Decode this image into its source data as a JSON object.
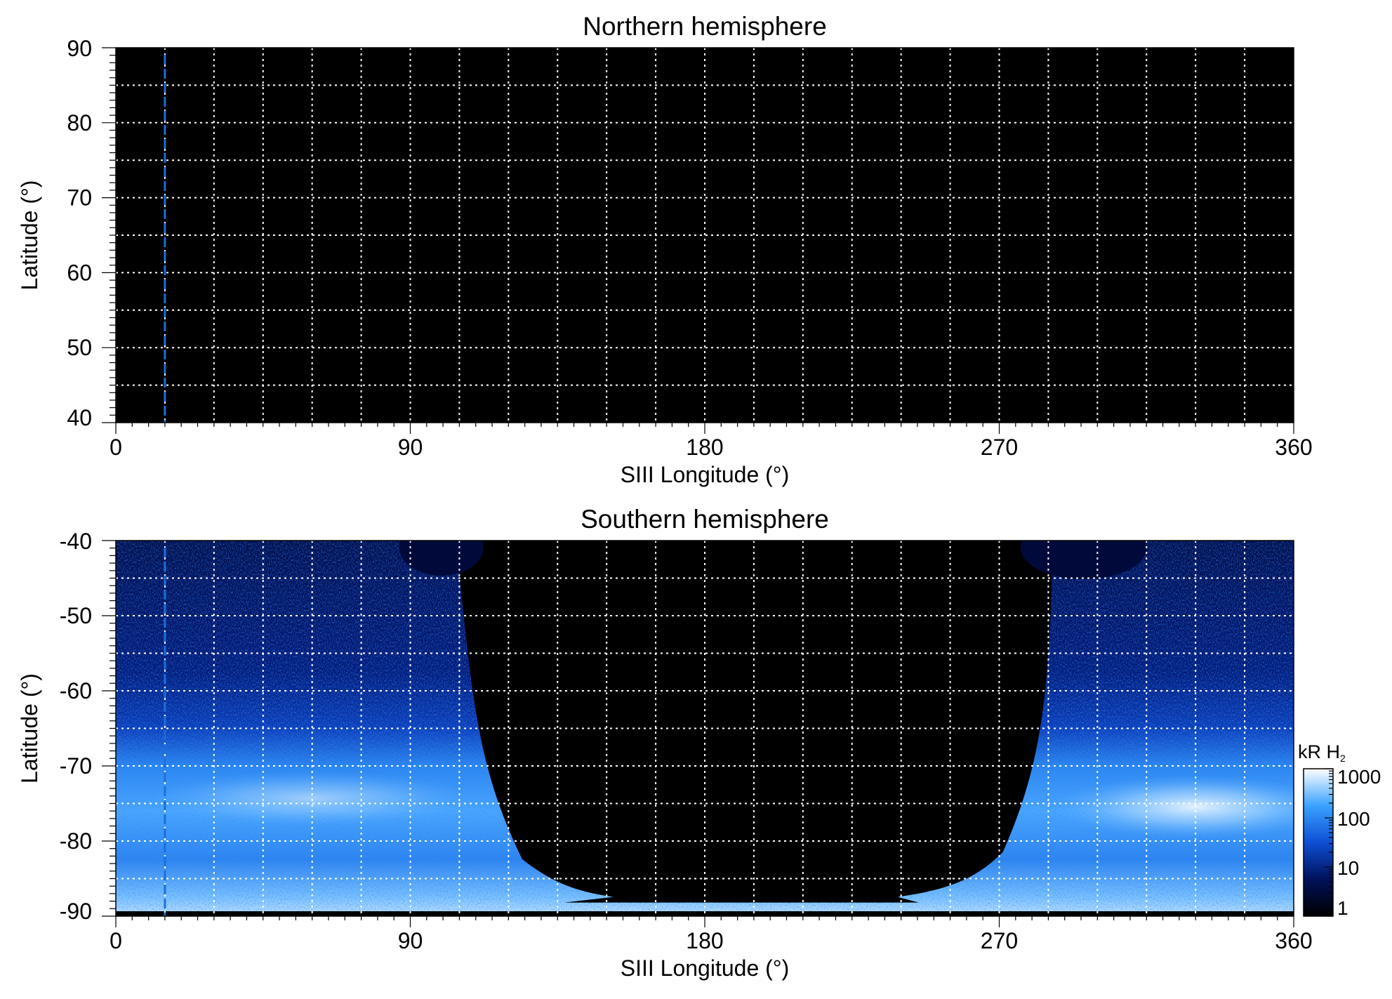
{
  "chart_data": [
    {
      "type": "heatmap",
      "title": "Northern hemisphere",
      "xlabel": "SIII Longitude (°)",
      "ylabel": "Latitude (°)",
      "xlim": [
        0,
        360
      ],
      "ylim": [
        40,
        90
      ],
      "xticks": [
        0,
        90,
        180,
        270,
        360
      ],
      "xtick_labels": [
        "0",
        "90",
        "180",
        "270",
        "360"
      ],
      "yticks": [
        40,
        50,
        60,
        70,
        80,
        90
      ],
      "ytick_labels": [
        "40",
        "50",
        "60",
        "70",
        "80",
        "90"
      ],
      "grid": true,
      "grid_x_step": 15,
      "grid_y_step": 5,
      "background_color": "#000000",
      "marker_line": {
        "longitude": 15,
        "color": "#1e6fd9"
      },
      "observed_region": "none"
    },
    {
      "type": "heatmap",
      "title": "Southern hemisphere",
      "xlabel": "SIII Longitude (°)",
      "ylabel": "Latitude (°)",
      "xlim": [
        0,
        360
      ],
      "ylim": [
        -90,
        -40
      ],
      "xticks": [
        0,
        90,
        180,
        270,
        360
      ],
      "xtick_labels": [
        "0",
        "90",
        "180",
        "270",
        "360"
      ],
      "yticks": [
        -90,
        -80,
        -70,
        -60,
        -50,
        -40
      ],
      "ytick_labels": [
        "-90",
        "-80",
        "-70",
        "-60",
        "-50",
        "-40"
      ],
      "grid": true,
      "grid_x_step": 15,
      "grid_y_step": 5,
      "marker_line": {
        "longitude": 15,
        "color": "#1e6fd9"
      },
      "no_data_region": {
        "lon_range": [
          107,
          284
        ],
        "lat_bottom": -88
      },
      "bright_oval": {
        "lat_center": -76,
        "description": "auroral emission band"
      },
      "colorbar": {
        "label_main": "kR H",
        "label_sub": "2",
        "scale": "log",
        "range": [
          1,
          1000
        ],
        "ticks": [
          1,
          10,
          100,
          1000
        ],
        "tick_labels": [
          "1",
          "10",
          "100",
          "1000"
        ],
        "colors": [
          "#000000",
          "#00115a",
          "#0e4fd4",
          "#3aa2ff",
          "#ffffff"
        ]
      }
    }
  ]
}
